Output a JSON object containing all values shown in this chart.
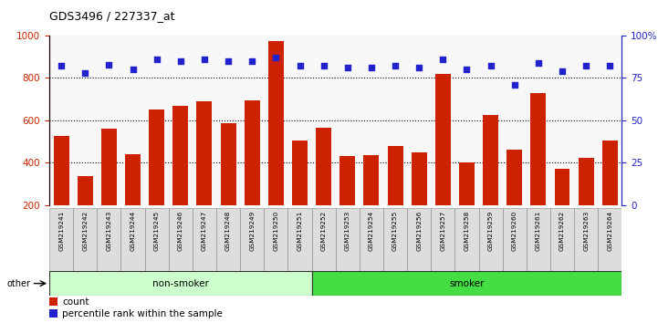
{
  "title": "GDS3496 / 227337_at",
  "samples": [
    "GSM219241",
    "GSM219242",
    "GSM219243",
    "GSM219244",
    "GSM219245",
    "GSM219246",
    "GSM219247",
    "GSM219248",
    "GSM219249",
    "GSM219250",
    "GSM219251",
    "GSM219252",
    "GSM219253",
    "GSM219254",
    "GSM219255",
    "GSM219256",
    "GSM219257",
    "GSM219258",
    "GSM219259",
    "GSM219260",
    "GSM219261",
    "GSM219262",
    "GSM219263",
    "GSM219264"
  ],
  "counts": [
    525,
    335,
    560,
    440,
    650,
    670,
    690,
    585,
    695,
    975,
    505,
    565,
    430,
    435,
    480,
    450,
    820,
    400,
    625,
    460,
    730,
    370,
    425,
    505
  ],
  "percentiles": [
    82,
    78,
    83,
    80,
    86,
    85,
    86,
    85,
    85,
    87,
    82,
    82,
    81,
    81,
    82,
    81,
    86,
    80,
    82,
    71,
    84,
    79,
    82,
    82
  ],
  "groups": {
    "non-smoker": [
      0,
      11
    ],
    "smoker": [
      11,
      24
    ]
  },
  "bar_color": "#cc2200",
  "dot_color": "#2222cc",
  "nonsmoker_color": "#ccffcc",
  "smoker_color": "#44dd44",
  "ylim_left": [
    200,
    1000
  ],
  "ylim_right": [
    0,
    100
  ],
  "yticks_left": [
    200,
    400,
    600,
    800,
    1000
  ],
  "yticks_right": [
    0,
    25,
    50,
    75,
    100
  ],
  "grid_values": [
    400,
    600,
    800
  ],
  "tick_label_bg": "#dddddd",
  "plot_bg": "#f8f8f8"
}
